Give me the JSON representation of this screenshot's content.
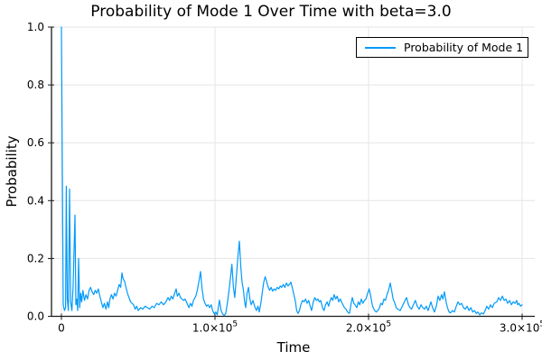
{
  "colors": {
    "line": "#009AFA",
    "grid": "#E5E5E5",
    "axis": "#1A1A1A",
    "text": "#000000",
    "background": "#FFFFFF",
    "legend_border": "#000000"
  },
  "chart_data": {
    "type": "line",
    "title": "Probability of Mode 1 Over Time with beta=3.0",
    "xlabel": "Time",
    "ylabel": "Probability",
    "xlim": [
      0,
      300000
    ],
    "ylim": [
      0.0,
      1.0
    ],
    "grid": true,
    "legend_position": "top-right",
    "xticks": [
      {
        "value": 0,
        "label": "0"
      },
      {
        "value": 100000,
        "label": "1.0×10⁵"
      },
      {
        "value": 200000,
        "label": "2.0×10⁵"
      },
      {
        "value": 300000,
        "label": "3.0×10⁵"
      }
    ],
    "yticks": [
      {
        "value": 0.0,
        "label": "0.0"
      },
      {
        "value": 0.2,
        "label": "0.2"
      },
      {
        "value": 0.4,
        "label": "0.4"
      },
      {
        "value": 0.6,
        "label": "0.6"
      },
      {
        "value": 0.8,
        "label": "0.8"
      },
      {
        "value": 1.0,
        "label": "1.0"
      }
    ],
    "series": [
      {
        "name": "Probability of Mode 1",
        "color": "#009AFA",
        "points": [
          [
            0,
            1.0
          ],
          [
            700,
            0.42
          ],
          [
            1200,
            0.04
          ],
          [
            2000,
            0.02
          ],
          [
            2700,
            0.03
          ],
          [
            3200,
            0.45
          ],
          [
            3800,
            0.06
          ],
          [
            4500,
            0.02
          ],
          [
            5300,
            0.44
          ],
          [
            6000,
            0.05
          ],
          [
            6800,
            0.02
          ],
          [
            7600,
            0.1
          ],
          [
            8800,
            0.35
          ],
          [
            9400,
            0.04
          ],
          [
            10000,
            0.06
          ],
          [
            10600,
            0.02
          ],
          [
            11200,
            0.2
          ],
          [
            11900,
            0.03
          ],
          [
            12500,
            0.08
          ],
          [
            13200,
            0.05
          ],
          [
            14000,
            0.09
          ],
          [
            15000,
            0.055
          ],
          [
            16000,
            0.075
          ],
          [
            17000,
            0.06
          ],
          [
            18000,
            0.09
          ],
          [
            19000,
            0.1
          ],
          [
            20000,
            0.085
          ],
          [
            21000,
            0.075
          ],
          [
            22000,
            0.09
          ],
          [
            23000,
            0.08
          ],
          [
            24000,
            0.095
          ],
          [
            25000,
            0.07
          ],
          [
            26000,
            0.05
          ],
          [
            27000,
            0.03
          ],
          [
            28000,
            0.045
          ],
          [
            29000,
            0.025
          ],
          [
            30000,
            0.05
          ],
          [
            30800,
            0.03
          ],
          [
            31600,
            0.06
          ],
          [
            32600,
            0.075
          ],
          [
            33600,
            0.06
          ],
          [
            34600,
            0.08
          ],
          [
            35600,
            0.07
          ],
          [
            36600,
            0.09
          ],
          [
            37600,
            0.11
          ],
          [
            38600,
            0.1
          ],
          [
            39400,
            0.15
          ],
          [
            40200,
            0.13
          ],
          [
            41200,
            0.12
          ],
          [
            42000,
            0.1
          ],
          [
            43000,
            0.08
          ],
          [
            44000,
            0.065
          ],
          [
            45000,
            0.05
          ],
          [
            46000,
            0.045
          ],
          [
            47000,
            0.04
          ],
          [
            48000,
            0.025
          ],
          [
            49000,
            0.035
          ],
          [
            50000,
            0.02
          ],
          [
            51500,
            0.03
          ],
          [
            53000,
            0.025
          ],
          [
            54500,
            0.035
          ],
          [
            56000,
            0.03
          ],
          [
            57500,
            0.025
          ],
          [
            59000,
            0.035
          ],
          [
            60500,
            0.03
          ],
          [
            62000,
            0.045
          ],
          [
            63500,
            0.04
          ],
          [
            65000,
            0.05
          ],
          [
            66500,
            0.04
          ],
          [
            68000,
            0.05
          ],
          [
            69500,
            0.065
          ],
          [
            70500,
            0.055
          ],
          [
            71500,
            0.07
          ],
          [
            72500,
            0.06
          ],
          [
            73500,
            0.075
          ],
          [
            74700,
            0.095
          ],
          [
            75500,
            0.07
          ],
          [
            76500,
            0.08
          ],
          [
            77500,
            0.065
          ],
          [
            78500,
            0.06
          ],
          [
            79500,
            0.055
          ],
          [
            80500,
            0.06
          ],
          [
            81800,
            0.045
          ],
          [
            83000,
            0.03
          ],
          [
            84000,
            0.045
          ],
          [
            85000,
            0.035
          ],
          [
            86000,
            0.055
          ],
          [
            87500,
            0.07
          ],
          [
            88500,
            0.09
          ],
          [
            89500,
            0.12
          ],
          [
            90600,
            0.155
          ],
          [
            91500,
            0.1
          ],
          [
            92500,
            0.06
          ],
          [
            93500,
            0.045
          ],
          [
            94500,
            0.035
          ],
          [
            95500,
            0.04
          ],
          [
            96500,
            0.03
          ],
          [
            97500,
            0.04
          ],
          [
            98500,
            0.02
          ],
          [
            99500,
            0.008
          ],
          [
            100500,
            0.015
          ],
          [
            101500,
            0.005
          ],
          [
            102900,
            0.056
          ],
          [
            104000,
            0.02
          ],
          [
            105000,
            0.008
          ],
          [
            106000,
            0.003
          ],
          [
            107000,
            0.01
          ],
          [
            108200,
            0.05
          ],
          [
            109100,
            0.09
          ],
          [
            110000,
            0.13
          ],
          [
            111000,
            0.18
          ],
          [
            112000,
            0.1
          ],
          [
            112900,
            0.065
          ],
          [
            113800,
            0.13
          ],
          [
            114800,
            0.2
          ],
          [
            115900,
            0.26
          ],
          [
            116800,
            0.17
          ],
          [
            117600,
            0.12
          ],
          [
            118500,
            0.09
          ],
          [
            119300,
            0.05
          ],
          [
            120000,
            0.03
          ],
          [
            120900,
            0.08
          ],
          [
            121800,
            0.1
          ],
          [
            122700,
            0.06
          ],
          [
            123600,
            0.04
          ],
          [
            124700,
            0.055
          ],
          [
            125900,
            0.034
          ],
          [
            127000,
            0.02
          ],
          [
            128000,
            0.035
          ],
          [
            128800,
            0.015
          ],
          [
            130000,
            0.05
          ],
          [
            131000,
            0.09
          ],
          [
            131800,
            0.12
          ],
          [
            132700,
            0.137
          ],
          [
            133600,
            0.12
          ],
          [
            134700,
            0.1
          ],
          [
            135500,
            0.09
          ],
          [
            136500,
            0.1
          ],
          [
            137500,
            0.087
          ],
          [
            138500,
            0.095
          ],
          [
            139500,
            0.09
          ],
          [
            140500,
            0.1
          ],
          [
            141500,
            0.095
          ],
          [
            142500,
            0.105
          ],
          [
            143500,
            0.1
          ],
          [
            144500,
            0.11
          ],
          [
            145500,
            0.1
          ],
          [
            146500,
            0.115
          ],
          [
            147500,
            0.105
          ],
          [
            148500,
            0.11
          ],
          [
            149400,
            0.118
          ],
          [
            150300,
            0.1
          ],
          [
            151200,
            0.08
          ],
          [
            152400,
            0.05
          ],
          [
            153200,
            0.02
          ],
          [
            154100,
            0.01
          ],
          [
            155000,
            0.02
          ],
          [
            155900,
            0.04
          ],
          [
            157000,
            0.055
          ],
          [
            158000,
            0.05
          ],
          [
            159000,
            0.06
          ],
          [
            160000,
            0.045
          ],
          [
            161000,
            0.055
          ],
          [
            162000,
            0.035
          ],
          [
            162900,
            0.02
          ],
          [
            164000,
            0.05
          ],
          [
            165000,
            0.065
          ],
          [
            166000,
            0.055
          ],
          [
            167000,
            0.06
          ],
          [
            168000,
            0.05
          ],
          [
            168800,
            0.055
          ],
          [
            170000,
            0.03
          ],
          [
            171000,
            0.02
          ],
          [
            172000,
            0.04
          ],
          [
            173000,
            0.05
          ],
          [
            174000,
            0.035
          ],
          [
            174700,
            0.05
          ],
          [
            175700,
            0.065
          ],
          [
            176700,
            0.055
          ],
          [
            177600,
            0.075
          ],
          [
            178600,
            0.06
          ],
          [
            179600,
            0.07
          ],
          [
            180600,
            0.05
          ],
          [
            181600,
            0.06
          ],
          [
            182400,
            0.05
          ],
          [
            183300,
            0.04
          ],
          [
            184300,
            0.03
          ],
          [
            185300,
            0.025
          ],
          [
            186300,
            0.015
          ],
          [
            187600,
            0.01
          ],
          [
            188500,
            0.04
          ],
          [
            189400,
            0.065
          ],
          [
            190400,
            0.045
          ],
          [
            191200,
            0.04
          ],
          [
            192400,
            0.03
          ],
          [
            193300,
            0.05
          ],
          [
            194300,
            0.04
          ],
          [
            195300,
            0.06
          ],
          [
            196300,
            0.045
          ],
          [
            197300,
            0.055
          ],
          [
            198300,
            0.06
          ],
          [
            199400,
            0.08
          ],
          [
            200400,
            0.095
          ],
          [
            201400,
            0.07
          ],
          [
            202400,
            0.04
          ],
          [
            203000,
            0.03
          ],
          [
            204000,
            0.02
          ],
          [
            205000,
            0.015
          ],
          [
            206000,
            0.02
          ],
          [
            207100,
            0.03
          ],
          [
            208000,
            0.045
          ],
          [
            209000,
            0.04
          ],
          [
            210000,
            0.06
          ],
          [
            211000,
            0.055
          ],
          [
            212000,
            0.075
          ],
          [
            213000,
            0.09
          ],
          [
            214100,
            0.115
          ],
          [
            215000,
            0.09
          ],
          [
            216000,
            0.06
          ],
          [
            217100,
            0.045
          ],
          [
            218000,
            0.03
          ],
          [
            219000,
            0.025
          ],
          [
            220600,
            0.02
          ],
          [
            222000,
            0.035
          ],
          [
            223300,
            0.05
          ],
          [
            224700,
            0.065
          ],
          [
            226000,
            0.04
          ],
          [
            227000,
            0.03
          ],
          [
            228000,
            0.025
          ],
          [
            229200,
            0.04
          ],
          [
            230500,
            0.055
          ],
          [
            231700,
            0.035
          ],
          [
            233000,
            0.025
          ],
          [
            234200,
            0.04
          ],
          [
            235300,
            0.03
          ],
          [
            236500,
            0.025
          ],
          [
            237600,
            0.035
          ],
          [
            238800,
            0.02
          ],
          [
            240600,
            0.05
          ],
          [
            241700,
            0.03
          ],
          [
            242900,
            0.015
          ],
          [
            244100,
            0.035
          ],
          [
            245300,
            0.07
          ],
          [
            246400,
            0.055
          ],
          [
            247500,
            0.075
          ],
          [
            248400,
            0.06
          ],
          [
            249400,
            0.085
          ],
          [
            250500,
            0.05
          ],
          [
            251400,
            0.03
          ],
          [
            252400,
            0.015
          ],
          [
            253500,
            0.012
          ],
          [
            254600,
            0.02
          ],
          [
            255900,
            0.015
          ],
          [
            257100,
            0.035
          ],
          [
            258200,
            0.05
          ],
          [
            259400,
            0.04
          ],
          [
            260600,
            0.045
          ],
          [
            261800,
            0.03
          ],
          [
            263000,
            0.025
          ],
          [
            264200,
            0.035
          ],
          [
            265400,
            0.02
          ],
          [
            266600,
            0.03
          ],
          [
            267800,
            0.015
          ],
          [
            269000,
            0.02
          ],
          [
            270100,
            0.01
          ],
          [
            271200,
            0.015
          ],
          [
            272400,
            0.005
          ],
          [
            273600,
            0.012
          ],
          [
            274800,
            0.008
          ],
          [
            275900,
            0.02
          ],
          [
            277000,
            0.035
          ],
          [
            278200,
            0.025
          ],
          [
            279400,
            0.04
          ],
          [
            280600,
            0.03
          ],
          [
            281800,
            0.045
          ],
          [
            283500,
            0.05
          ],
          [
            284700,
            0.065
          ],
          [
            285900,
            0.055
          ],
          [
            287100,
            0.07
          ],
          [
            288300,
            0.055
          ],
          [
            289400,
            0.06
          ],
          [
            290600,
            0.045
          ],
          [
            291800,
            0.055
          ],
          [
            293000,
            0.04
          ],
          [
            294200,
            0.05
          ],
          [
            295400,
            0.045
          ],
          [
            296500,
            0.055
          ],
          [
            297100,
            0.04
          ],
          [
            298000,
            0.045
          ],
          [
            299000,
            0.035
          ],
          [
            300000,
            0.04
          ]
        ]
      }
    ]
  }
}
